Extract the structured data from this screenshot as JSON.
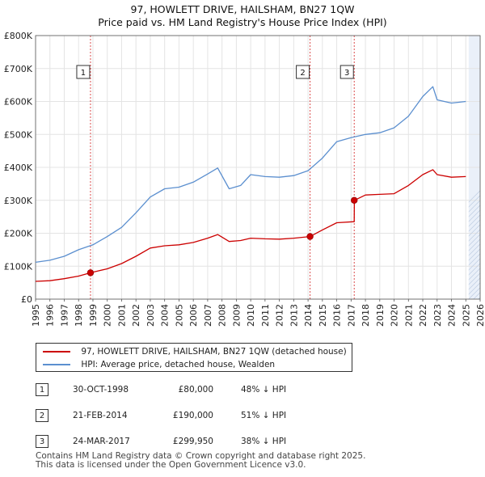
{
  "title": "97, HOWLETT DRIVE, HAILSHAM, BN27 1QW",
  "subtitle": "Price paid vs. HM Land Registry's House Price Index (HPI)",
  "colors": {
    "property": "#cc0000",
    "hpi": "#5b8fcf",
    "shade": "#dce6f5",
    "grid": "#e4e4e4"
  },
  "legend": {
    "property_label": "97, HOWLETT DRIVE, HAILSHAM, BN27 1QW (detached house)",
    "hpi_label": "HPI: Average price, detached house, Wealden"
  },
  "sales": [
    {
      "num": "1",
      "date": "30-OCT-1998",
      "price": "£80,000",
      "hpi_diff": "48% ↓ HPI"
    },
    {
      "num": "2",
      "date": "21-FEB-2014",
      "price": "£190,000",
      "hpi_diff": "51% ↓ HPI"
    },
    {
      "num": "3",
      "date": "24-MAR-2017",
      "price": "£299,950",
      "hpi_diff": "38% ↓ HPI"
    }
  ],
  "footer": {
    "line1": "Contains HM Land Registry data © Crown copyright and database right 2025.",
    "line2": "This data is licensed under the Open Government Licence v3.0."
  },
  "chart_data": {
    "type": "line",
    "title": "97, HOWLETT DRIVE, HAILSHAM, BN27 1QW",
    "subtitle": "Price paid vs. HM Land Registry's House Price Index (HPI)",
    "xlabel": "",
    "ylabel": "",
    "xlim": [
      1995,
      2026
    ],
    "ylim": [
      0,
      800000
    ],
    "x_ticks": [
      1995,
      1996,
      1997,
      1998,
      1999,
      2000,
      2001,
      2002,
      2003,
      2004,
      2005,
      2006,
      2007,
      2008,
      2009,
      2010,
      2011,
      2012,
      2013,
      2014,
      2015,
      2016,
      2017,
      2018,
      2019,
      2020,
      2021,
      2022,
      2023,
      2024,
      2025,
      2026
    ],
    "y_ticks": [
      0,
      100000,
      200000,
      300000,
      400000,
      500000,
      600000,
      700000,
      800000
    ],
    "y_tick_labels": [
      "£0",
      "£100K",
      "£200K",
      "£300K",
      "£400K",
      "£500K",
      "£600K",
      "£700K",
      "£800K"
    ],
    "grid": true,
    "forecast_shade_from": 2025.2,
    "series": [
      {
        "name": "97, HOWLETT DRIVE, HAILSHAM, BN27 1QW (detached house)",
        "color": "#cc0000",
        "x": [
          1995,
          1996,
          1997,
          1998,
          1998.83,
          1999,
          2000,
          2001,
          2002,
          2003,
          2004,
          2005,
          2006,
          2007,
          2007.7,
          2008.5,
          2009.3,
          2010,
          2011,
          2012,
          2013,
          2014.14,
          2015,
          2016,
          2017.22,
          2017.23,
          2018,
          2019,
          2020,
          2021,
          2022,
          2022.7,
          2023,
          2024,
          2025
        ],
        "y": [
          54000,
          56000,
          62000,
          70000,
          80000,
          82000,
          92000,
          108000,
          130000,
          155000,
          162000,
          165000,
          172000,
          185000,
          196000,
          175000,
          178000,
          185000,
          183000,
          182000,
          185000,
          190000,
          210000,
          232000,
          235000,
          299950,
          316000,
          318000,
          320000,
          345000,
          378000,
          393000,
          378000,
          370000,
          372000
        ]
      },
      {
        "name": "HPI: Average price, detached house, Wealden",
        "color": "#5b8fcf",
        "x": [
          1995,
          1996,
          1997,
          1998,
          1999,
          2000,
          2001,
          2002,
          2003,
          2004,
          2005,
          2006,
          2007,
          2007.7,
          2008.5,
          2009.3,
          2010,
          2011,
          2012,
          2013,
          2014,
          2015,
          2016,
          2017,
          2018,
          2019,
          2020,
          2021,
          2022,
          2022.7,
          2023,
          2024,
          2025
        ],
        "y": [
          112000,
          118000,
          130000,
          150000,
          165000,
          190000,
          218000,
          262000,
          310000,
          335000,
          340000,
          355000,
          380000,
          398000,
          335000,
          345000,
          378000,
          372000,
          370000,
          375000,
          390000,
          428000,
          478000,
          490000,
          500000,
          505000,
          520000,
          555000,
          615000,
          645000,
          605000,
          595000,
          600000
        ]
      }
    ],
    "annotations": [
      {
        "label": "1",
        "x": 1998.83,
        "y": 80000
      },
      {
        "label": "2",
        "x": 2014.14,
        "y": 190000
      },
      {
        "label": "3",
        "x": 2017.22,
        "y": 299950
      }
    ]
  }
}
